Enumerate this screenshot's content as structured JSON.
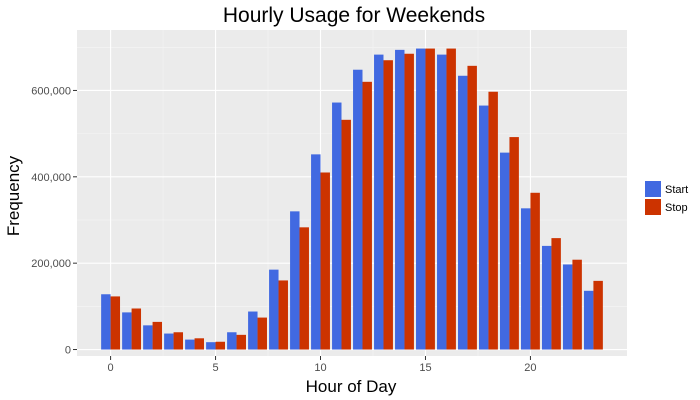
{
  "chart_data": {
    "type": "bar",
    "title": "Hourly Usage for Weekends",
    "xlabel": "Hour of Day",
    "ylabel": "Frequency",
    "x_ticks": [
      "0",
      "5",
      "10",
      "15",
      "20"
    ],
    "y_ticks": [
      "0",
      "200,000",
      "400,000",
      "600,000"
    ],
    "xlim": [
      -1.6,
      24.6
    ],
    "ylim": [
      -15000,
      740000
    ],
    "grid": true,
    "legend_position": "right",
    "categories": [
      0,
      1,
      2,
      3,
      4,
      5,
      6,
      7,
      8,
      9,
      10,
      11,
      12,
      13,
      14,
      15,
      16,
      17,
      18,
      19,
      20,
      21,
      22,
      23
    ],
    "series": [
      {
        "name": "Start",
        "color": "#4169E1",
        "values": [
          128000,
          86000,
          56000,
          37000,
          23000,
          17000,
          40000,
          88000,
          185000,
          320000,
          452000,
          572000,
          648000,
          683000,
          694000,
          697000,
          683000,
          634000,
          565000,
          456000,
          327000,
          240000,
          197000,
          136000
        ]
      },
      {
        "name": "Stop",
        "color": "#CC3300",
        "values": [
          123000,
          95000,
          64000,
          40000,
          26000,
          18000,
          34000,
          74000,
          160000,
          283000,
          410000,
          532000,
          620000,
          670000,
          685000,
          697000,
          697000,
          657000,
          597000,
          492000,
          363000,
          258000,
          208000,
          159000
        ]
      }
    ]
  }
}
